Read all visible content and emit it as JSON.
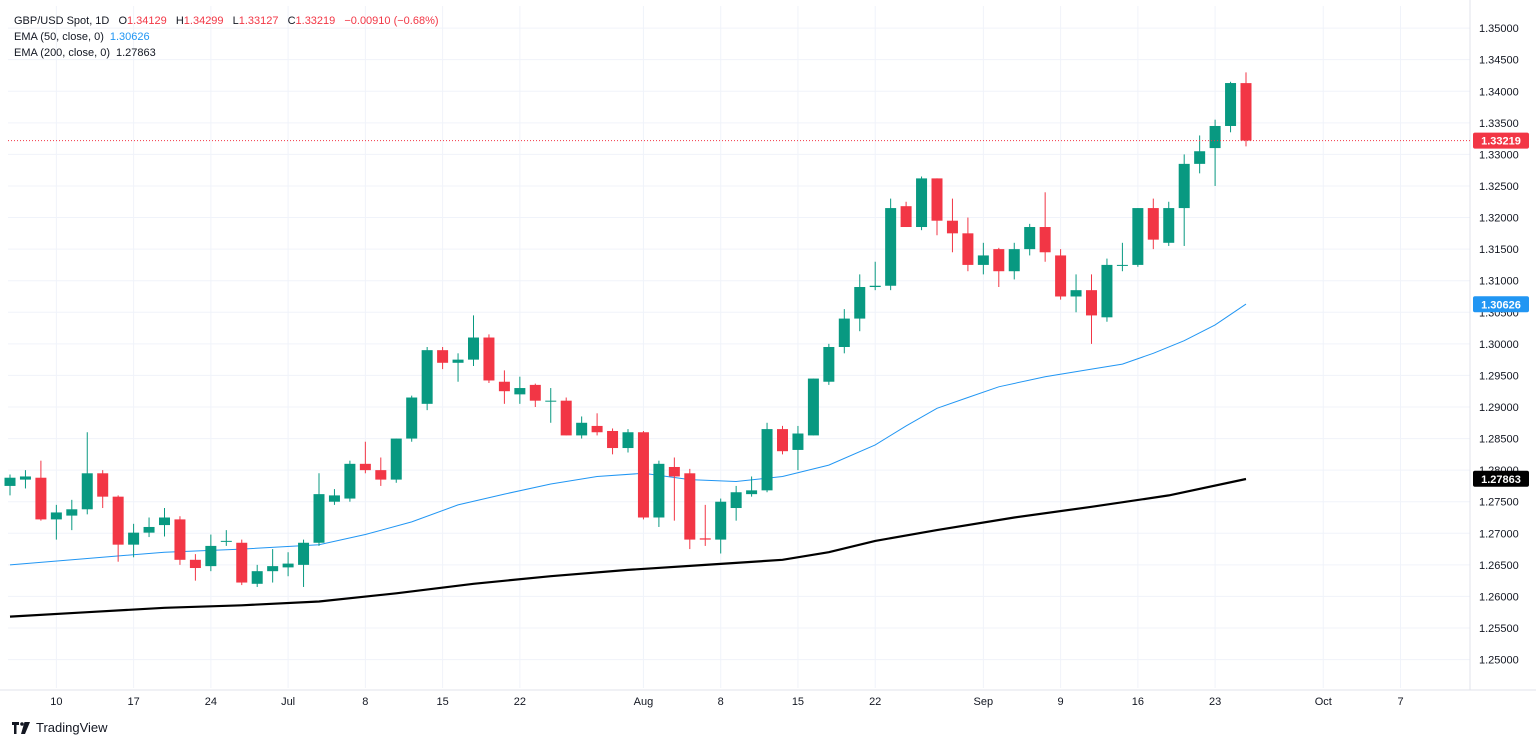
{
  "legend": {
    "symbol": "GBP/USD Spot, 1D",
    "open_label": "O",
    "open": "1.34129",
    "high_label": "H",
    "high": "1.34299",
    "low_label": "L",
    "low": "1.33127",
    "close_label": "C",
    "close": "1.33219",
    "change": "−0.00910 (−0.68%)",
    "ema50_label": "EMA (50, close, 0)",
    "ema50_value": "1.30626",
    "ema200_label": "EMA (200, close, 0)",
    "ema200_value": "1.27863"
  },
  "branding": {
    "name": "TradingView",
    "logo_icon": "tradingview-logo-icon"
  },
  "colors": {
    "up": "#089981",
    "down": "#f23645",
    "ema50": "#2196f3",
    "ema200": "#000000",
    "grid": "#f0f3fa",
    "axis_text": "#131722",
    "last_price": "#f23645"
  },
  "chart_data": {
    "type": "candlestick",
    "title": "GBP/USD Spot, 1D",
    "ylim": [
      1.2455,
      1.3535
    ],
    "y_ticks": [
      "1.35000",
      "1.34500",
      "1.34000",
      "1.33500",
      "1.33000",
      "1.32500",
      "1.32000",
      "1.31500",
      "1.31000",
      "1.30500",
      "1.30000",
      "1.29500",
      "1.29000",
      "1.28500",
      "1.28000",
      "1.27500",
      "1.27000",
      "1.26500",
      "1.26000",
      "1.25500",
      "1.25000"
    ],
    "x_labels": [
      {
        "label": "10",
        "index": 3
      },
      {
        "label": "17",
        "index": 8
      },
      {
        "label": "24",
        "index": 13
      },
      {
        "label": "Jul",
        "index": 18
      },
      {
        "label": "8",
        "index": 23
      },
      {
        "label": "15",
        "index": 28
      },
      {
        "label": "22",
        "index": 33
      },
      {
        "label": "Aug",
        "index": 41
      },
      {
        "label": "8",
        "index": 46
      },
      {
        "label": "15",
        "index": 51
      },
      {
        "label": "22",
        "index": 56
      },
      {
        "label": "Sep",
        "index": 63
      },
      {
        "label": "9",
        "index": 68
      },
      {
        "label": "16",
        "index": 73
      },
      {
        "label": "23",
        "index": 78
      },
      {
        "label": "Oct",
        "index": 85
      },
      {
        "label": "7",
        "index": 90
      }
    ],
    "candles": [
      {
        "o": 1.2775,
        "h": 1.2793,
        "l": 1.276,
        "c": 1.2788
      },
      {
        "o": 1.2785,
        "h": 1.28,
        "l": 1.2771,
        "c": 1.279
      },
      {
        "o": 1.2788,
        "h": 1.2815,
        "l": 1.272,
        "c": 1.2722
      },
      {
        "o": 1.2722,
        "h": 1.2745,
        "l": 1.269,
        "c": 1.2733
      },
      {
        "o": 1.2728,
        "h": 1.2753,
        "l": 1.2705,
        "c": 1.2738
      },
      {
        "o": 1.2738,
        "h": 1.286,
        "l": 1.273,
        "c": 1.2795
      },
      {
        "o": 1.2795,
        "h": 1.28,
        "l": 1.274,
        "c": 1.2758
      },
      {
        "o": 1.2758,
        "h": 1.276,
        "l": 1.2655,
        "c": 1.2682
      },
      {
        "o": 1.2682,
        "h": 1.2715,
        "l": 1.2662,
        "c": 1.2701
      },
      {
        "o": 1.2701,
        "h": 1.2725,
        "l": 1.2694,
        "c": 1.271
      },
      {
        "o": 1.2713,
        "h": 1.274,
        "l": 1.2695,
        "c": 1.2725
      },
      {
        "o": 1.2722,
        "h": 1.2727,
        "l": 1.265,
        "c": 1.2658
      },
      {
        "o": 1.2658,
        "h": 1.2667,
        "l": 1.2625,
        "c": 1.2645
      },
      {
        "o": 1.2648,
        "h": 1.2698,
        "l": 1.264,
        "c": 1.268
      },
      {
        "o": 1.2688,
        "h": 1.2705,
        "l": 1.268,
        "c": 1.2688
      },
      {
        "o": 1.2685,
        "h": 1.269,
        "l": 1.2618,
        "c": 1.2622
      },
      {
        "o": 1.262,
        "h": 1.265,
        "l": 1.2615,
        "c": 1.264
      },
      {
        "o": 1.264,
        "h": 1.2675,
        "l": 1.2622,
        "c": 1.2648
      },
      {
        "o": 1.2646,
        "h": 1.267,
        "l": 1.2632,
        "c": 1.2652
      },
      {
        "o": 1.265,
        "h": 1.269,
        "l": 1.2615,
        "c": 1.2685
      },
      {
        "o": 1.2685,
        "h": 1.2795,
        "l": 1.268,
        "c": 1.2762
      },
      {
        "o": 1.275,
        "h": 1.277,
        "l": 1.2745,
        "c": 1.276
      },
      {
        "o": 1.2755,
        "h": 1.2815,
        "l": 1.275,
        "c": 1.281
      },
      {
        "o": 1.281,
        "h": 1.2845,
        "l": 1.2795,
        "c": 1.28
      },
      {
        "o": 1.28,
        "h": 1.282,
        "l": 1.2775,
        "c": 1.2785
      },
      {
        "o": 1.2785,
        "h": 1.285,
        "l": 1.278,
        "c": 1.285
      },
      {
        "o": 1.285,
        "h": 1.2918,
        "l": 1.2845,
        "c": 1.2915
      },
      {
        "o": 1.2905,
        "h": 1.2995,
        "l": 1.2895,
        "c": 1.299
      },
      {
        "o": 1.299,
        "h": 1.2995,
        "l": 1.296,
        "c": 1.297
      },
      {
        "o": 1.297,
        "h": 1.2985,
        "l": 1.294,
        "c": 1.2975
      },
      {
        "o": 1.2975,
        "h": 1.3045,
        "l": 1.2965,
        "c": 1.301
      },
      {
        "o": 1.301,
        "h": 1.3015,
        "l": 1.2938,
        "c": 1.2942
      },
      {
        "o": 1.294,
        "h": 1.2958,
        "l": 1.2905,
        "c": 1.2925
      },
      {
        "o": 1.292,
        "h": 1.2948,
        "l": 1.2905,
        "c": 1.293
      },
      {
        "o": 1.2935,
        "h": 1.2937,
        "l": 1.29,
        "c": 1.291
      },
      {
        "o": 1.291,
        "h": 1.293,
        "l": 1.2875,
        "c": 1.291
      },
      {
        "o": 1.291,
        "h": 1.2915,
        "l": 1.2855,
        "c": 1.2855
      },
      {
        "o": 1.2855,
        "h": 1.2885,
        "l": 1.285,
        "c": 1.2875
      },
      {
        "o": 1.287,
        "h": 1.289,
        "l": 1.2855,
        "c": 1.286
      },
      {
        "o": 1.2862,
        "h": 1.2866,
        "l": 1.2825,
        "c": 1.2835
      },
      {
        "o": 1.2835,
        "h": 1.2865,
        "l": 1.2828,
        "c": 1.286
      },
      {
        "o": 1.286,
        "h": 1.2862,
        "l": 1.2722,
        "c": 1.2725
      },
      {
        "o": 1.2725,
        "h": 1.2815,
        "l": 1.271,
        "c": 1.281
      },
      {
        "o": 1.2805,
        "h": 1.282,
        "l": 1.272,
        "c": 1.279
      },
      {
        "o": 1.2795,
        "h": 1.2802,
        "l": 1.2675,
        "c": 1.269
      },
      {
        "o": 1.2692,
        "h": 1.2745,
        "l": 1.268,
        "c": 1.269
      },
      {
        "o": 1.269,
        "h": 1.2755,
        "l": 1.2668,
        "c": 1.275
      },
      {
        "o": 1.274,
        "h": 1.2775,
        "l": 1.272,
        "c": 1.2765
      },
      {
        "o": 1.2762,
        "h": 1.279,
        "l": 1.2758,
        "c": 1.2768
      },
      {
        "o": 1.2768,
        "h": 1.2875,
        "l": 1.2765,
        "c": 1.2865
      },
      {
        "o": 1.2865,
        "h": 1.287,
        "l": 1.2825,
        "c": 1.283
      },
      {
        "o": 1.2832,
        "h": 1.287,
        "l": 1.28,
        "c": 1.2858
      },
      {
        "o": 1.2855,
        "h": 1.2945,
        "l": 1.2855,
        "c": 1.2945
      },
      {
        "o": 1.294,
        "h": 1.3,
        "l": 1.2935,
        "c": 1.2995
      },
      {
        "o": 1.2995,
        "h": 1.3055,
        "l": 1.2985,
        "c": 1.304
      },
      {
        "o": 1.304,
        "h": 1.311,
        "l": 1.302,
        "c": 1.309
      },
      {
        "o": 1.309,
        "h": 1.313,
        "l": 1.3085,
        "c": 1.3092
      },
      {
        "o": 1.3092,
        "h": 1.323,
        "l": 1.3085,
        "c": 1.3215
      },
      {
        "o": 1.3218,
        "h": 1.3225,
        "l": 1.3185,
        "c": 1.3185
      },
      {
        "o": 1.3185,
        "h": 1.3265,
        "l": 1.318,
        "c": 1.3262
      },
      {
        "o": 1.3262,
        "h": 1.3262,
        "l": 1.3172,
        "c": 1.3195
      },
      {
        "o": 1.3195,
        "h": 1.323,
        "l": 1.3145,
        "c": 1.3175
      },
      {
        "o": 1.3175,
        "h": 1.32,
        "l": 1.3115,
        "c": 1.3125
      },
      {
        "o": 1.3125,
        "h": 1.316,
        "l": 1.311,
        "c": 1.314
      },
      {
        "o": 1.315,
        "h": 1.3152,
        "l": 1.309,
        "c": 1.3115
      },
      {
        "o": 1.3115,
        "h": 1.316,
        "l": 1.3102,
        "c": 1.315
      },
      {
        "o": 1.315,
        "h": 1.319,
        "l": 1.314,
        "c": 1.3185
      },
      {
        "o": 1.3185,
        "h": 1.324,
        "l": 1.313,
        "c": 1.3145
      },
      {
        "o": 1.314,
        "h": 1.315,
        "l": 1.307,
        "c": 1.3075
      },
      {
        "o": 1.3075,
        "h": 1.311,
        "l": 1.305,
        "c": 1.3085
      },
      {
        "o": 1.3085,
        "h": 1.311,
        "l": 1.3,
        "c": 1.3045
      },
      {
        "o": 1.3042,
        "h": 1.3135,
        "l": 1.3035,
        "c": 1.3125
      },
      {
        "o": 1.3125,
        "h": 1.316,
        "l": 1.3115,
        "c": 1.3125
      },
      {
        "o": 1.3125,
        "h": 1.3215,
        "l": 1.3122,
        "c": 1.3215
      },
      {
        "o": 1.3215,
        "h": 1.323,
        "l": 1.315,
        "c": 1.3165
      },
      {
        "o": 1.316,
        "h": 1.3225,
        "l": 1.3155,
        "c": 1.3215
      },
      {
        "o": 1.3215,
        "h": 1.33,
        "l": 1.3155,
        "c": 1.3285
      },
      {
        "o": 1.3285,
        "h": 1.333,
        "l": 1.327,
        "c": 1.3305
      },
      {
        "o": 1.331,
        "h": 1.3355,
        "l": 1.325,
        "c": 1.3345
      },
      {
        "o": 1.3345,
        "h": 1.3415,
        "l": 1.3335,
        "c": 1.3413
      },
      {
        "o": 1.34129,
        "h": 1.34299,
        "l": 1.33127,
        "c": 1.33219
      }
    ],
    "ema50": [
      [
        0,
        1.265
      ],
      [
        5,
        1.266
      ],
      [
        10,
        1.267
      ],
      [
        15,
        1.2675
      ],
      [
        20,
        1.2682
      ],
      [
        23,
        1.2698
      ],
      [
        26,
        1.2718
      ],
      [
        29,
        1.2745
      ],
      [
        32,
        1.2762
      ],
      [
        35,
        1.2778
      ],
      [
        38,
        1.279
      ],
      [
        41,
        1.2795
      ],
      [
        44,
        1.2785
      ],
      [
        47,
        1.2782
      ],
      [
        50,
        1.279
      ],
      [
        53,
        1.2808
      ],
      [
        56,
        1.284
      ],
      [
        58,
        1.287
      ],
      [
        60,
        1.2898
      ],
      [
        62,
        1.2915
      ],
      [
        64,
        1.2932
      ],
      [
        67,
        1.2948
      ],
      [
        70,
        1.296
      ],
      [
        72,
        1.2968
      ],
      [
        74,
        1.2985
      ],
      [
        76,
        1.3005
      ],
      [
        78,
        1.303
      ],
      [
        80,
        1.3063
      ]
    ],
    "ema200": [
      [
        0,
        1.2568
      ],
      [
        5,
        1.2575
      ],
      [
        10,
        1.2582
      ],
      [
        15,
        1.2586
      ],
      [
        20,
        1.2592
      ],
      [
        25,
        1.2605
      ],
      [
        30,
        1.262
      ],
      [
        35,
        1.2632
      ],
      [
        40,
        1.2642
      ],
      [
        45,
        1.265
      ],
      [
        50,
        1.2658
      ],
      [
        53,
        1.267
      ],
      [
        56,
        1.2688
      ],
      [
        60,
        1.2705
      ],
      [
        65,
        1.2725
      ],
      [
        70,
        1.2742
      ],
      [
        75,
        1.276
      ],
      [
        80,
        1.2786
      ]
    ],
    "last_price": {
      "value": 1.33219,
      "label": "1.33219"
    },
    "ema50_tag": {
      "value": 1.30626,
      "label": "1.30626"
    },
    "ema200_tag": {
      "value": 1.27863,
      "label": "1.27863"
    }
  }
}
